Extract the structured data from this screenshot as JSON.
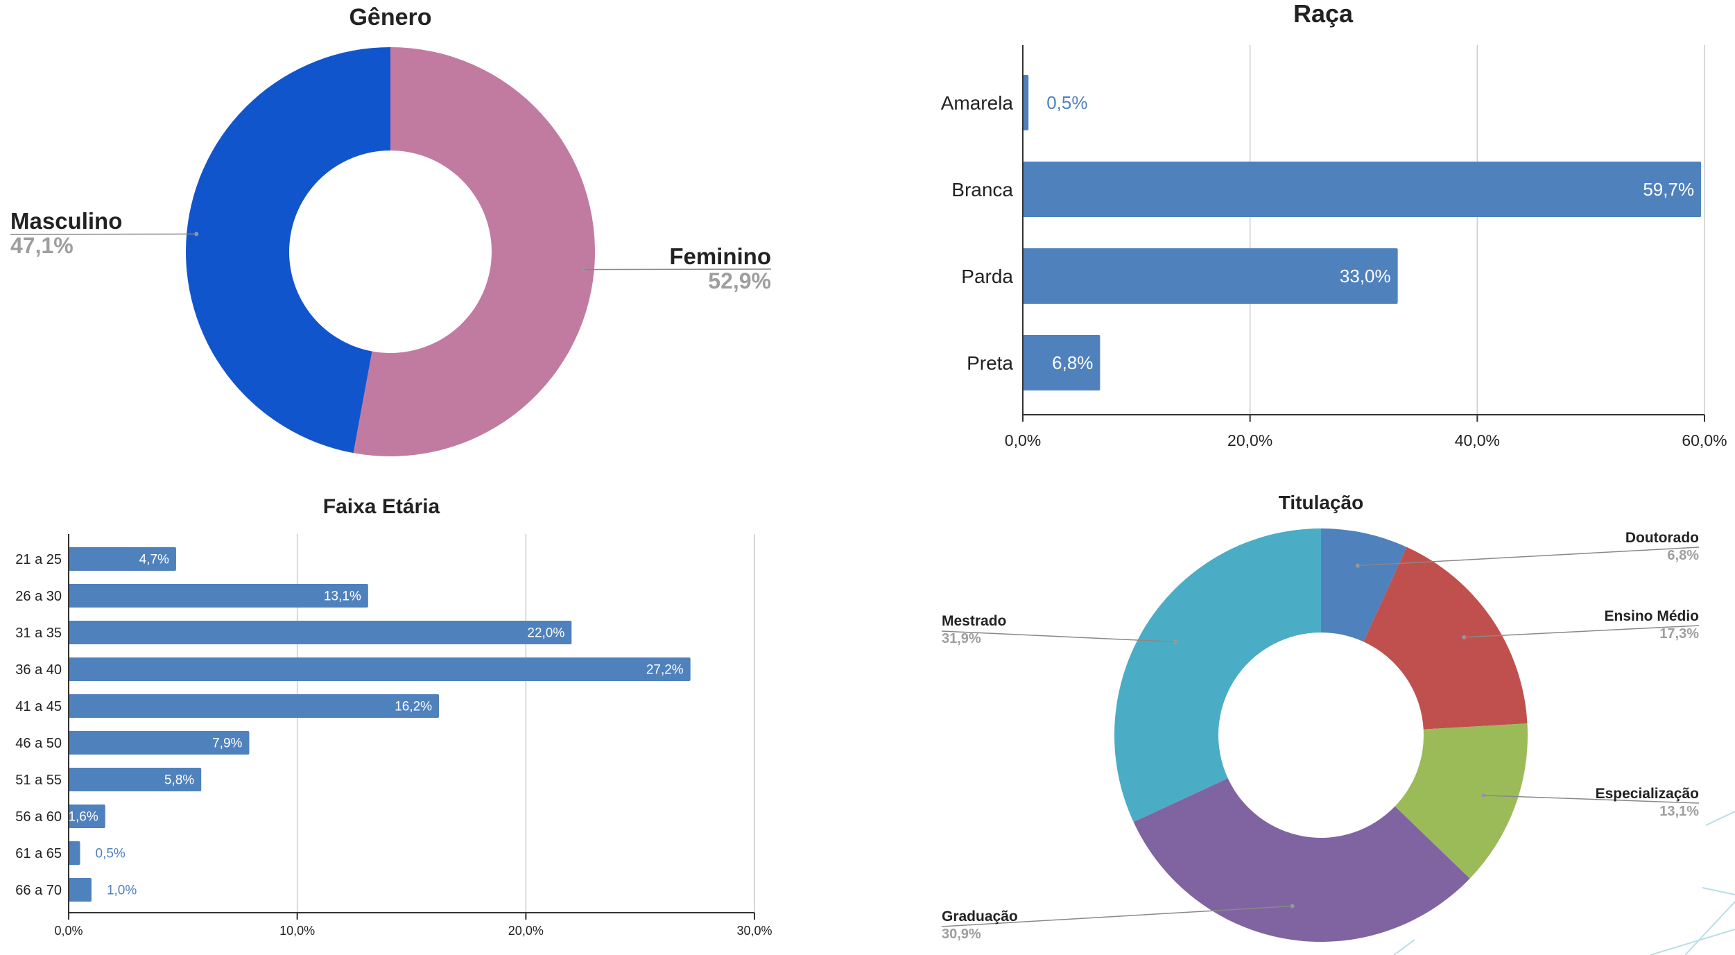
{
  "chart_data": [
    {
      "id": "genero",
      "type": "pie",
      "title": "Gênero",
      "slices": [
        {
          "label": "Feminino",
          "value": 52.9,
          "value_label": "52,9%",
          "color": "#c17ba0"
        },
        {
          "label": "Masculino",
          "value": 47.1,
          "value_label": "47,1%",
          "color": "#1155cc"
        }
      ]
    },
    {
      "id": "raca",
      "type": "bar",
      "orientation": "horizontal",
      "title": "Raça",
      "categories": [
        "Amarela",
        "Branca",
        "Parda",
        "Preta"
      ],
      "values": [
        0.5,
        59.7,
        33.0,
        6.8
      ],
      "value_labels": [
        "0,5%",
        "59,7%",
        "33,0%",
        "6,8%"
      ],
      "xlim": [
        0,
        60
      ],
      "ticks": [
        0,
        20,
        40,
        60
      ],
      "tick_labels": [
        "0,0%",
        "20,0%",
        "40,0%",
        "60,0%"
      ],
      "color": "#4f81bd",
      "grid": true
    },
    {
      "id": "faixa",
      "type": "bar",
      "orientation": "horizontal",
      "title": "Faixa Etária",
      "categories": [
        "21 a 25",
        "26 a 30",
        "31 a 35",
        "36 a 40",
        "41 a 45",
        "46 a 50",
        "51 a 55",
        "56 a 60",
        "61 a 65",
        "66 a 70"
      ],
      "values": [
        4.7,
        13.1,
        22.0,
        27.2,
        16.2,
        7.9,
        5.8,
        1.6,
        0.5,
        1.0
      ],
      "value_labels": [
        "4,7%",
        "13,1%",
        "22,0%",
        "27,2%",
        "16,2%",
        "7,9%",
        "5,8%",
        "1,6%",
        "0,5%",
        "1,0%"
      ],
      "xlim": [
        0,
        30
      ],
      "ticks": [
        0,
        10,
        20,
        30
      ],
      "tick_labels": [
        "0,0%",
        "10,0%",
        "20,0%",
        "30,0%"
      ],
      "color": "#4f81bd",
      "grid": true
    },
    {
      "id": "titulacao",
      "type": "pie",
      "title": "Titulação",
      "slices": [
        {
          "label": "Doutorado",
          "value": 6.8,
          "value_label": "6,8%",
          "color": "#4f81bd"
        },
        {
          "label": "Ensino Médio",
          "value": 17.3,
          "value_label": "17,3%",
          "color": "#c0504d"
        },
        {
          "label": "Especialização",
          "value": 13.1,
          "value_label": "13,1%",
          "color": "#9bbb59"
        },
        {
          "label": "Graduação",
          "value": 30.9,
          "value_label": "30,9%",
          "color": "#8064a2"
        },
        {
          "label": "Mestrado",
          "value": 31.9,
          "value_label": "31,9%",
          "color": "#4bacc6"
        }
      ]
    }
  ]
}
